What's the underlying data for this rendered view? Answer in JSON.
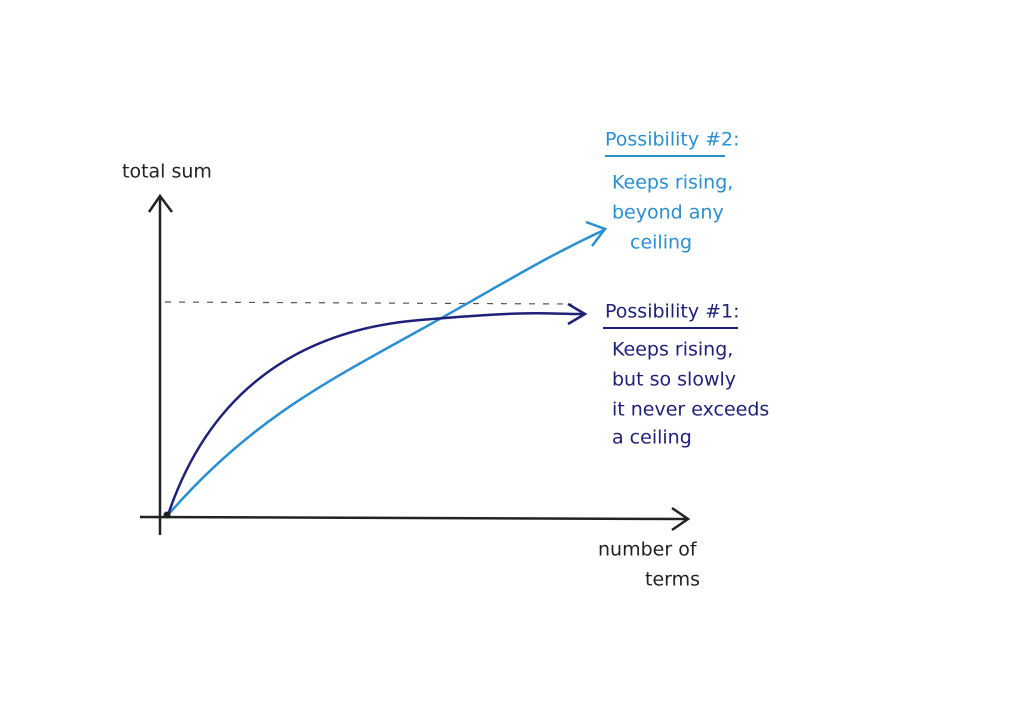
{
  "axes": {
    "y_label": "total sum",
    "x_label": [
      "number of",
      "terms"
    ]
  },
  "possibilities": [
    {
      "title": "Possibility #2:",
      "lines": [
        "Keeps rising,",
        "beyond any",
        "ceiling"
      ]
    },
    {
      "title": "Possibility #1:",
      "lines": [
        "Keeps rising,",
        "but so slowly",
        "it never exceeds",
        "a ceiling"
      ]
    }
  ]
}
